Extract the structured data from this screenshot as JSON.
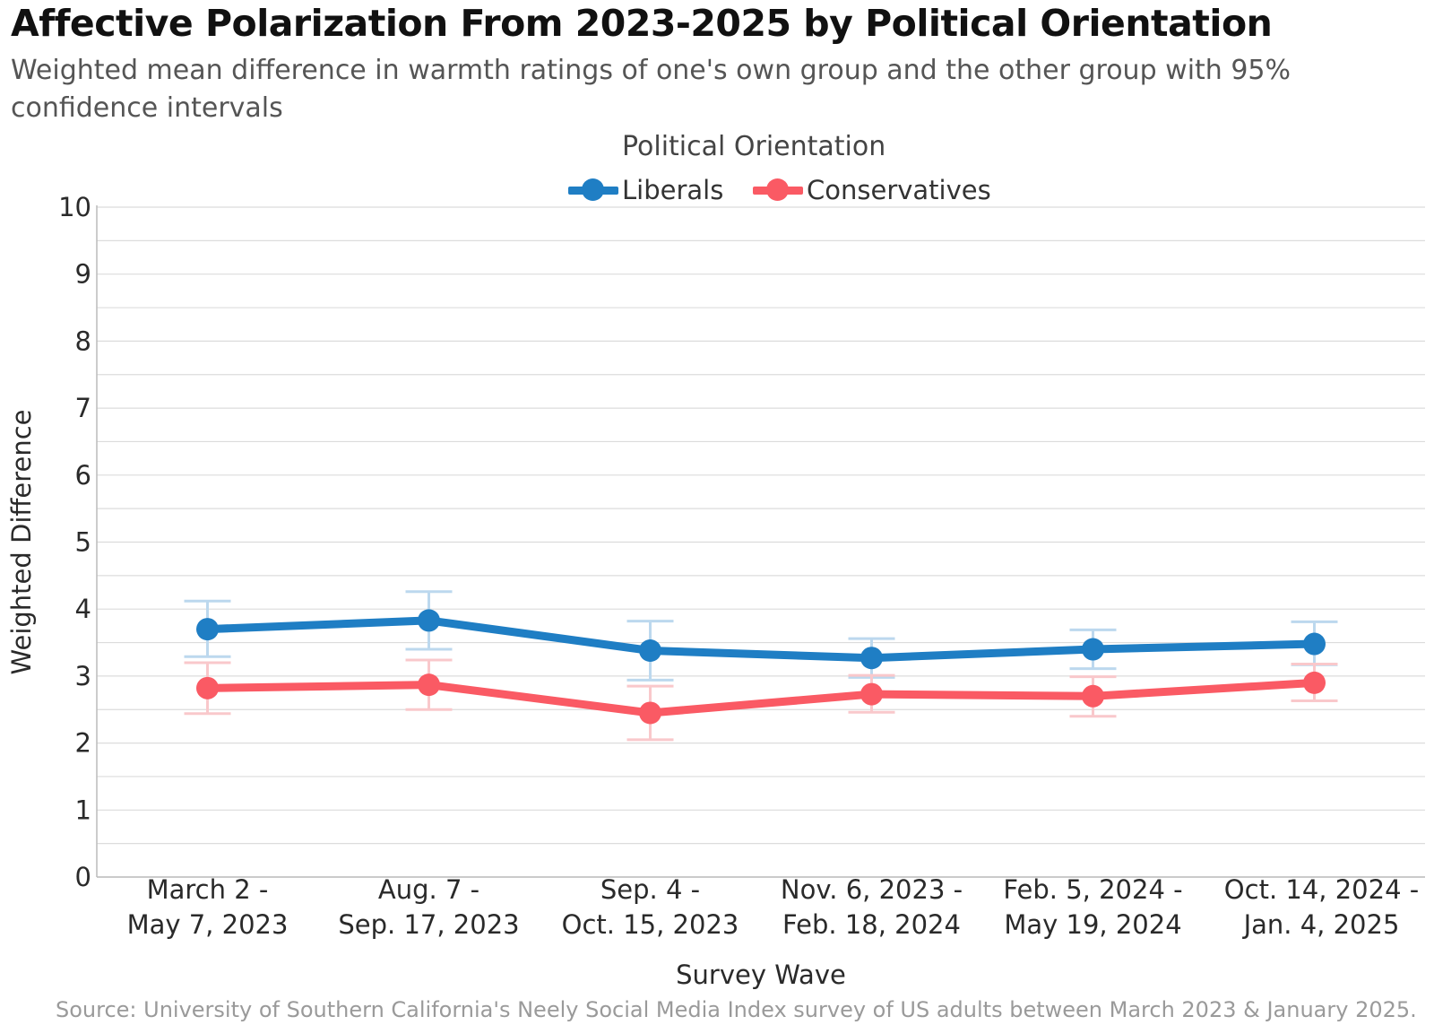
{
  "chart_data": {
    "type": "line",
    "title": "Affective Polarization From 2023-2025 by Political Orientation",
    "subtitle": "Weighted mean difference in warmth ratings of one's own group and the other group with 95% confidence intervals",
    "xlabel": "Survey Wave",
    "ylabel": "Weighted Difference",
    "ylim": [
      0,
      10
    ],
    "yticks": [
      0,
      1,
      2,
      3,
      4,
      5,
      6,
      7,
      8,
      9,
      10
    ],
    "grid": true,
    "legend_title": "Political Orientation",
    "legend_position": "top-center",
    "categories": [
      [
        "March 2 -",
        "May 7, 2023"
      ],
      [
        "Aug. 7 -",
        "Sep. 17, 2023"
      ],
      [
        "Sep. 4 -",
        "Oct. 15, 2023"
      ],
      [
        "Nov. 6, 2023 -",
        "Feb. 18, 2024"
      ],
      [
        "Feb. 5, 2024 -",
        "May 19, 2024"
      ],
      [
        "Oct. 14, 2024 -",
        "Jan. 4, 2025"
      ]
    ],
    "series": [
      {
        "name": "Liberals",
        "color": "#1f7ec4",
        "errorbar_color": "#bcd8ee",
        "values": [
          3.7,
          3.83,
          3.38,
          3.27,
          3.4,
          3.48
        ],
        "ci_low": [
          3.29,
          3.4,
          2.94,
          2.98,
          3.11,
          3.17
        ],
        "ci_high": [
          4.12,
          4.26,
          3.82,
          3.56,
          3.69,
          3.81
        ]
      },
      {
        "name": "Conservatives",
        "color": "#fa5a64",
        "errorbar_color": "#f9c8cb",
        "values": [
          2.82,
          2.87,
          2.45,
          2.73,
          2.7,
          2.9
        ],
        "ci_low": [
          2.44,
          2.5,
          2.05,
          2.46,
          2.4,
          2.63
        ],
        "ci_high": [
          3.2,
          3.24,
          2.85,
          3.01,
          2.99,
          3.18
        ]
      }
    ]
  },
  "source": "Source: University of Southern California's Neely Social Media Index survey of US adults between March 2023 & January 2025."
}
